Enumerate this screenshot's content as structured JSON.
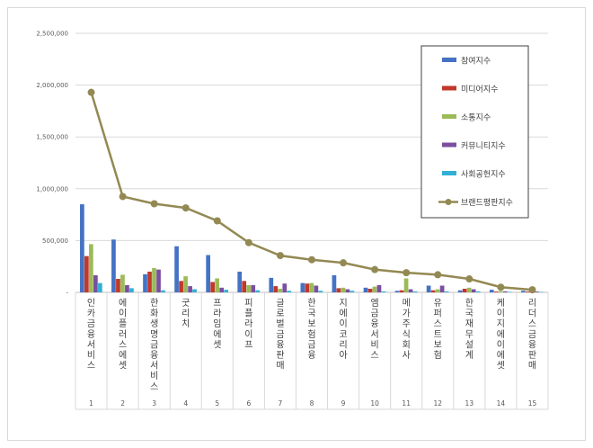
{
  "chart_data": {
    "type": "bar",
    "title": "",
    "xlabel": "",
    "ylabel": "",
    "ylim": [
      0,
      2500000
    ],
    "yticks": [
      0,
      500000,
      1000000,
      1500000,
      2000000,
      2500000
    ],
    "ytick_labels": [
      "-",
      "500,000",
      "1,000,000",
      "1,500,000",
      "2,000,000",
      "2,500,000"
    ],
    "grid": true,
    "legend_position": "top-right",
    "categories": [
      "인카금융서비스",
      "에이플러스에셋",
      "한화생명금융서비스",
      "굿리치",
      "프라임에셋",
      "피플라이프",
      "글로벌금융판매",
      "한국보험금융",
      "지에이코리아",
      "엠금융서비스",
      "메가주식회사",
      "유퍼스트보험",
      "한국재무설계",
      "케이지에이에셋",
      "리더스금융판매"
    ],
    "ranks": [
      "1",
      "2",
      "3",
      "4",
      "5",
      "6",
      "7",
      "8",
      "9",
      "10",
      "11",
      "12",
      "13",
      "14",
      "15"
    ],
    "series": [
      {
        "name": "참여지수",
        "color": "#4472c4",
        "values": [
          850000,
          510000,
          175000,
          445000,
          360000,
          200000,
          140000,
          90000,
          165000,
          45000,
          15000,
          65000,
          20000,
          25000,
          15000
        ]
      },
      {
        "name": "미디어지수",
        "color": "#c0392b",
        "values": [
          350000,
          130000,
          200000,
          110000,
          100000,
          110000,
          60000,
          85000,
          40000,
          35000,
          20000,
          20000,
          35000,
          8000,
          8000
        ]
      },
      {
        "name": "소통지수",
        "color": "#9bbb59",
        "values": [
          465000,
          170000,
          235000,
          155000,
          135000,
          70000,
          35000,
          90000,
          45000,
          55000,
          135000,
          30000,
          45000,
          12000,
          10000
        ]
      },
      {
        "name": "커뮤니티지수",
        "color": "#7b4fa0",
        "values": [
          165000,
          70000,
          220000,
          60000,
          45000,
          70000,
          85000,
          65000,
          30000,
          70000,
          30000,
          65000,
          30000,
          10000,
          8000
        ]
      },
      {
        "name": "사회공헌지수",
        "color": "#31b0d5",
        "values": [
          90000,
          40000,
          20000,
          30000,
          25000,
          20000,
          15000,
          15000,
          15000,
          10000,
          10000,
          10000,
          10000,
          5000,
          5000
        ]
      }
    ],
    "line_series": {
      "name": "브랜드평판지수",
      "color": "#938953",
      "values": [
        1930000,
        925000,
        855000,
        815000,
        690000,
        480000,
        355000,
        315000,
        285000,
        220000,
        190000,
        170000,
        130000,
        50000,
        25000
      ]
    }
  }
}
